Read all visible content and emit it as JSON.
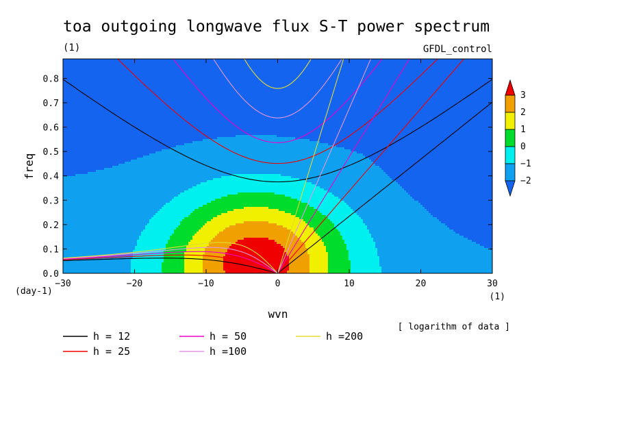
{
  "chart_data": {
    "type": "heatmap",
    "title": "toa outgoing longwave flux S-T power spectrum",
    "subtitle_left": "(1)",
    "subtitle_right": "GFDL_control",
    "xlabel": "wvn",
    "ylabel": "freq",
    "x_unit": "(1)",
    "y_unit": "(day-1)",
    "note": "[ logarithm of data ]",
    "xlim": [
      -30,
      30
    ],
    "ylim": [
      0.0,
      0.88
    ],
    "xticks": [
      -30,
      -20,
      -10,
      0,
      10,
      20,
      30
    ],
    "yticks": [
      0.0,
      0.1,
      0.2,
      0.3,
      0.4,
      0.5,
      0.6,
      0.7,
      0.8
    ],
    "colorbar": {
      "levels": [
        -2,
        -1,
        0,
        1,
        2,
        3
      ],
      "labels": [
        "3",
        "2",
        "1",
        "0",
        "−1",
        "−2"
      ],
      "colors": {
        "below_-2": "#1464f0",
        "-2_-1": "#0fa0f0",
        "-1_0": "#00f0f0",
        "0_1": "#00dc2c",
        "1_2": "#f0f000",
        "2_3": "#f0a000",
        "above_3": "#f00000"
      }
    },
    "field": {
      "peak": {
        "wvn": -3,
        "freq": 0.05,
        "value": 3.8
      },
      "width_wvn": 12,
      "width_freq": 0.28,
      "background": -1.6
    },
    "dispersion_curves": [
      {
        "h": 12,
        "label": "h = 12",
        "color": "#000000"
      },
      {
        "h": 25,
        "label": "h = 25",
        "color": "#f00000"
      },
      {
        "h": 50,
        "label": "h = 50",
        "color": "#f000c8"
      },
      {
        "h": 100,
        "label": "h =100",
        "color": "#e696e6"
      },
      {
        "h": 200,
        "label": "h =200",
        "color": "#e6dc32"
      }
    ]
  }
}
